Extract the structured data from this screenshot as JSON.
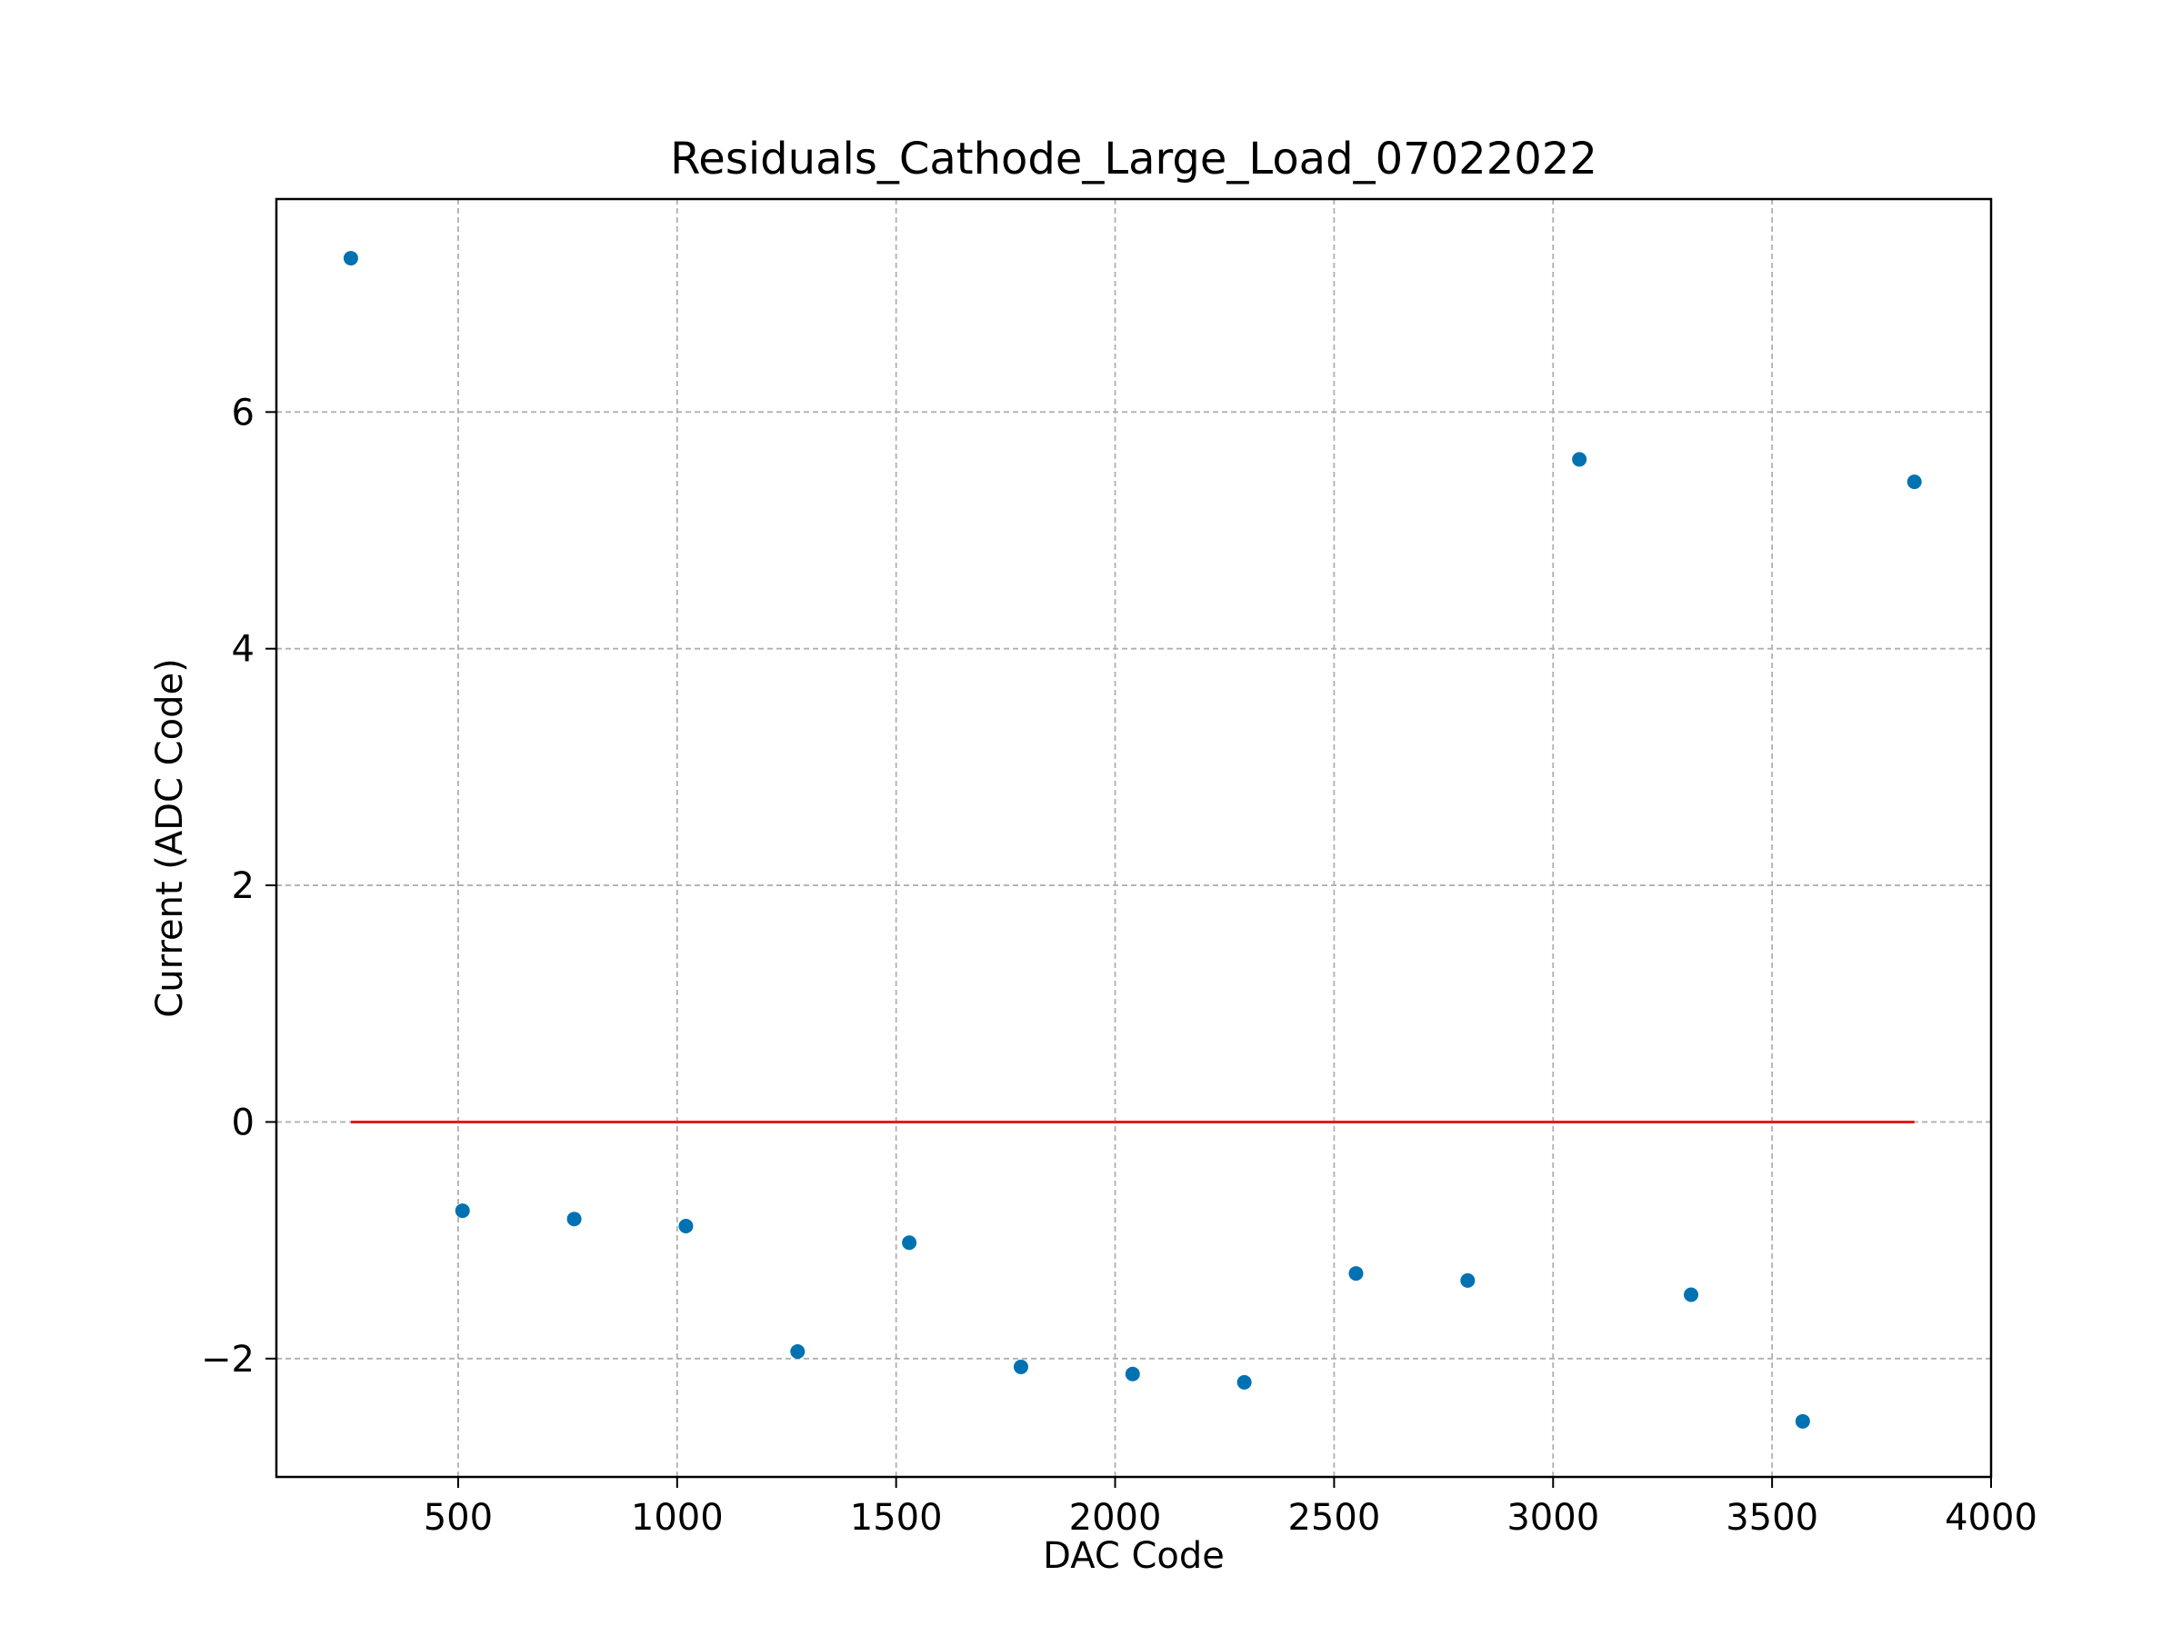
{
  "chart_data": {
    "type": "scatter",
    "title": "Residuals_Cathode_Large_Load_07022022",
    "xlabel": "DAC Code",
    "ylabel": "Current (ADC Code)",
    "xlim": [
      85,
      4000
    ],
    "ylim": [
      -3.0,
      7.8
    ],
    "xticks": [
      500,
      1000,
      1500,
      2000,
      2500,
      3000,
      3500,
      4000
    ],
    "xtick_labels": [
      "500",
      "1000",
      "1500",
      "2000",
      "2500",
      "3000",
      "3500",
      "4000"
    ],
    "yticks": [
      -2,
      0,
      2,
      4,
      6
    ],
    "ytick_labels": [
      "−2",
      "0",
      "2",
      "4",
      "6"
    ],
    "grid": true,
    "grid_style": "dashed",
    "colors": {
      "points": "#0072b2",
      "zero_line": "#e41a1c",
      "grid": "#b0b0b0"
    },
    "series": [
      {
        "x": [
          255,
          510,
          765,
          1020,
          1275,
          1530,
          1785,
          2040,
          2295,
          2550,
          2805,
          3060,
          3315,
          3570,
          3825
        ],
        "y": [
          7.3,
          -0.75,
          -0.82,
          -0.88,
          -1.94,
          -1.02,
          -2.07,
          -2.13,
          -2.2,
          -1.28,
          -1.34,
          5.6,
          -1.46,
          -2.53,
          5.41
        ]
      }
    ],
    "zero_line": {
      "x": [
        255,
        3825
      ],
      "y": 0
    }
  }
}
